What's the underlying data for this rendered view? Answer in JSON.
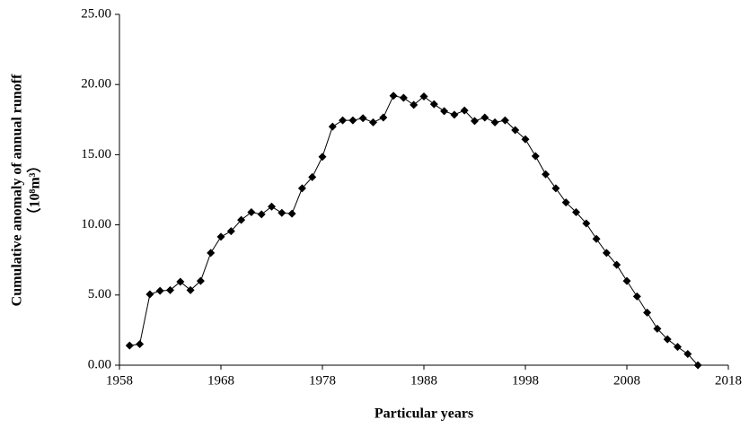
{
  "chart_data": {
    "type": "line",
    "y_label": "Cumulative anomaly of annual runoff",
    "y_label_unit": "（10⁸m³）",
    "x_label": "Particular years",
    "x": [
      1959,
      1960,
      1961,
      1962,
      1963,
      1964,
      1965,
      1966,
      1967,
      1968,
      1969,
      1970,
      1971,
      1972,
      1973,
      1974,
      1975,
      1976,
      1977,
      1978,
      1979,
      1980,
      1981,
      1982,
      1983,
      1984,
      1985,
      1986,
      1987,
      1988,
      1989,
      1990,
      1991,
      1992,
      1993,
      1994,
      1995,
      1996,
      1997,
      1998,
      1999,
      2000,
      2001,
      2002,
      2003,
      2004,
      2005,
      2006,
      2007,
      2008,
      2009,
      2010,
      2011,
      2012,
      2013,
      2014,
      2015
    ],
    "values": [
      1.4,
      1.5,
      5.05,
      5.3,
      5.35,
      5.95,
      5.35,
      6.0,
      8.0,
      9.15,
      9.55,
      10.35,
      10.9,
      10.75,
      11.3,
      10.85,
      10.8,
      12.6,
      13.4,
      14.85,
      17.0,
      17.45,
      17.45,
      17.6,
      17.3,
      17.65,
      19.2,
      19.05,
      18.55,
      19.15,
      18.6,
      18.1,
      17.85,
      18.15,
      17.4,
      17.65,
      17.3,
      17.45,
      16.75,
      16.1,
      14.9,
      13.6,
      12.6,
      11.6,
      10.9,
      10.1,
      9.0,
      8.0,
      7.15,
      6.0,
      4.9,
      3.75,
      2.6,
      1.85,
      1.3,
      0.8,
      0.0
    ],
    "color": "#000000",
    "marker": "diamond",
    "xlim": [
      1958,
      2018
    ],
    "xticks": [
      1958,
      1968,
      1978,
      1988,
      1998,
      2008,
      2018
    ],
    "ylim": [
      0,
      25
    ],
    "yticks": [
      {
        "value": 0,
        "label": "0.00"
      },
      {
        "value": 5,
        "label": "5.00"
      },
      {
        "value": 10,
        "label": "10.00"
      },
      {
        "value": 15,
        "label": "15.00"
      },
      {
        "value": 20,
        "label": "20.00"
      },
      {
        "value": 25,
        "label": "25.00"
      }
    ],
    "grid": false
  }
}
